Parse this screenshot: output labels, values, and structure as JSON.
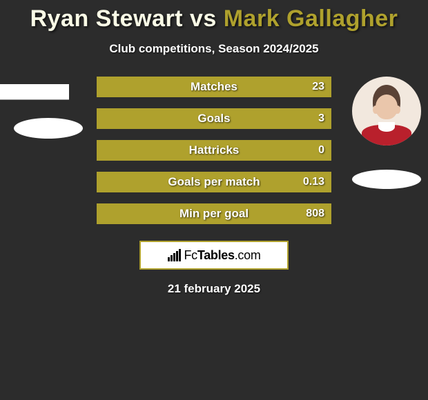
{
  "title": {
    "player1": "Ryan Stewart",
    "vs": "vs",
    "player2": "Mark Gallagher"
  },
  "player1_color": "#fafbe6",
  "player2_color": "#afa12d",
  "subtitle": "Club competitions, Season 2024/2025",
  "bar_bg_color": "#afa12d",
  "stats": [
    {
      "label": "Matches",
      "left_val": "",
      "right_val": "23",
      "left_w": 0,
      "right_w": 340
    },
    {
      "label": "Goals",
      "left_val": "",
      "right_val": "3",
      "left_w": 0,
      "right_w": 340
    },
    {
      "label": "Hattricks",
      "left_val": "",
      "right_val": "0",
      "left_w": 0,
      "right_w": 340
    },
    {
      "label": "Goals per match",
      "left_val": "",
      "right_val": "0.13",
      "left_w": 0,
      "right_w": 340
    },
    {
      "label": "Min per goal",
      "left_val": "",
      "right_val": "808",
      "left_w": 0,
      "right_w": 340
    }
  ],
  "brand": {
    "name_light": "Fc",
    "name_bold": "Tables",
    "name_suffix": ".com",
    "border_color": "#afa12d"
  },
  "date": "21 february 2025"
}
